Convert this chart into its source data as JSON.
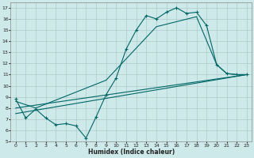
{
  "xlabel": "Humidex (Indice chaleur)",
  "background_color": "#cee9e9",
  "grid_color": "#b0c8c8",
  "line_color": "#006666",
  "xlim": [
    -0.5,
    23.5
  ],
  "ylim": [
    5,
    17.5
  ],
  "xticks": [
    0,
    1,
    2,
    3,
    4,
    5,
    6,
    7,
    8,
    9,
    10,
    11,
    12,
    13,
    14,
    15,
    16,
    17,
    18,
    19,
    20,
    21,
    22,
    23
  ],
  "yticks": [
    5,
    6,
    7,
    8,
    9,
    10,
    11,
    12,
    13,
    14,
    15,
    16,
    17
  ],
  "line1_x": [
    0,
    1,
    2,
    3,
    4,
    5,
    6,
    7,
    8,
    9,
    10,
    11,
    12,
    13,
    14,
    15,
    16,
    17,
    18,
    19,
    20,
    21,
    22,
    23
  ],
  "line1_y": [
    8.8,
    7.1,
    7.9,
    7.1,
    6.5,
    6.6,
    6.4,
    5.3,
    7.2,
    9.2,
    10.7,
    13.3,
    15.0,
    16.3,
    16.0,
    16.6,
    17.0,
    16.5,
    16.6,
    15.4,
    11.9,
    11.1,
    11.0,
    11.0
  ],
  "line2_x": [
    0,
    2,
    9,
    14,
    18,
    20,
    21,
    22,
    23
  ],
  "line2_y": [
    8.6,
    8.0,
    10.5,
    15.3,
    16.2,
    11.9,
    11.1,
    11.0,
    11.0
  ],
  "line3_x": [
    0,
    23
  ],
  "line3_y": [
    8.0,
    11.0
  ],
  "line4_x": [
    0,
    23
  ],
  "line4_y": [
    7.5,
    11.0
  ]
}
